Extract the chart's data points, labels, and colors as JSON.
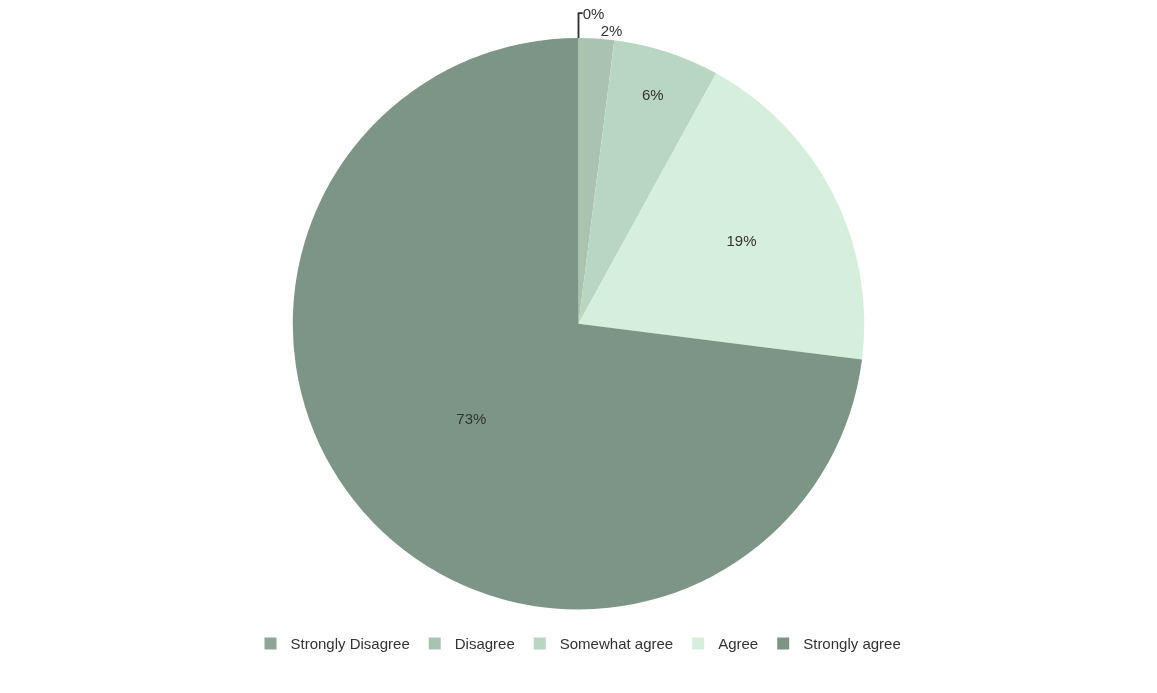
{
  "chart_data": {
    "type": "pie",
    "categories": [
      "Strongly Disagree",
      "Disagree",
      "Somewhat agree",
      "Agree",
      "Strongly agree"
    ],
    "values": [
      0,
      2,
      6,
      19,
      73
    ],
    "value_labels": [
      "0%",
      "2%",
      "6%",
      "19%",
      "73%"
    ],
    "colors": [
      "#8fa596",
      "#a9c2b1",
      "#b9d6c2",
      "#d6eedc",
      "#7d9587"
    ],
    "legend": "bottom"
  }
}
